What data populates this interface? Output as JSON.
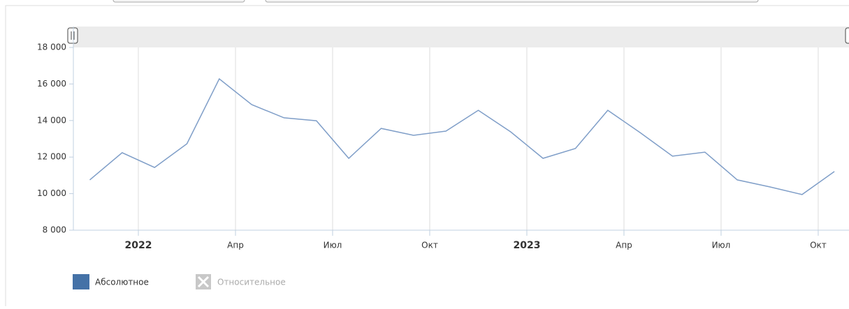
{
  "chart_data": {
    "type": "line",
    "x": [
      "2021-11",
      "2021-12",
      "2022-01",
      "2022-02",
      "2022-03",
      "2022-04",
      "2022-05",
      "2022-06",
      "2022-07",
      "2022-08",
      "2022-09",
      "2022-10",
      "2022-11",
      "2022-12",
      "2023-01",
      "2023-02",
      "2023-03",
      "2023-04",
      "2023-05",
      "2023-06",
      "2023-07",
      "2023-08",
      "2023-09",
      "2023-10"
    ],
    "series": [
      {
        "name": "Абсолютное",
        "color": "#7f9ec8",
        "values": [
          10750,
          12240,
          11430,
          12730,
          16280,
          14870,
          14150,
          13990,
          11930,
          13570,
          13190,
          13420,
          14560,
          13380,
          11930,
          12470,
          14560,
          13340,
          12050,
          12270,
          10750,
          10370,
          9950,
          11210
        ]
      }
    ],
    "hidden_series": [
      {
        "name": "Относительное"
      }
    ],
    "ylim": [
      8000,
      18000
    ],
    "yticks": [
      {
        "value": 8000,
        "label": "8 000"
      },
      {
        "value": 10000,
        "label": "10 000"
      },
      {
        "value": 12000,
        "label": "12 000"
      },
      {
        "value": 14000,
        "label": "14 000"
      },
      {
        "value": 16000,
        "label": "16 000"
      },
      {
        "value": 18000,
        "label": "18 000"
      }
    ],
    "xticks": [
      {
        "value": "2022-01",
        "label": "2022",
        "bold": true
      },
      {
        "value": "2022-04",
        "label": "Апр"
      },
      {
        "value": "2022-07",
        "label": "Июл"
      },
      {
        "value": "2022-10",
        "label": "Окт"
      },
      {
        "value": "2023-01",
        "label": "2023",
        "bold": true
      },
      {
        "value": "2023-04",
        "label": "Апр"
      },
      {
        "value": "2023-07",
        "label": "Июл"
      },
      {
        "value": "2023-10",
        "label": "Окт"
      }
    ],
    "grid": true
  }
}
